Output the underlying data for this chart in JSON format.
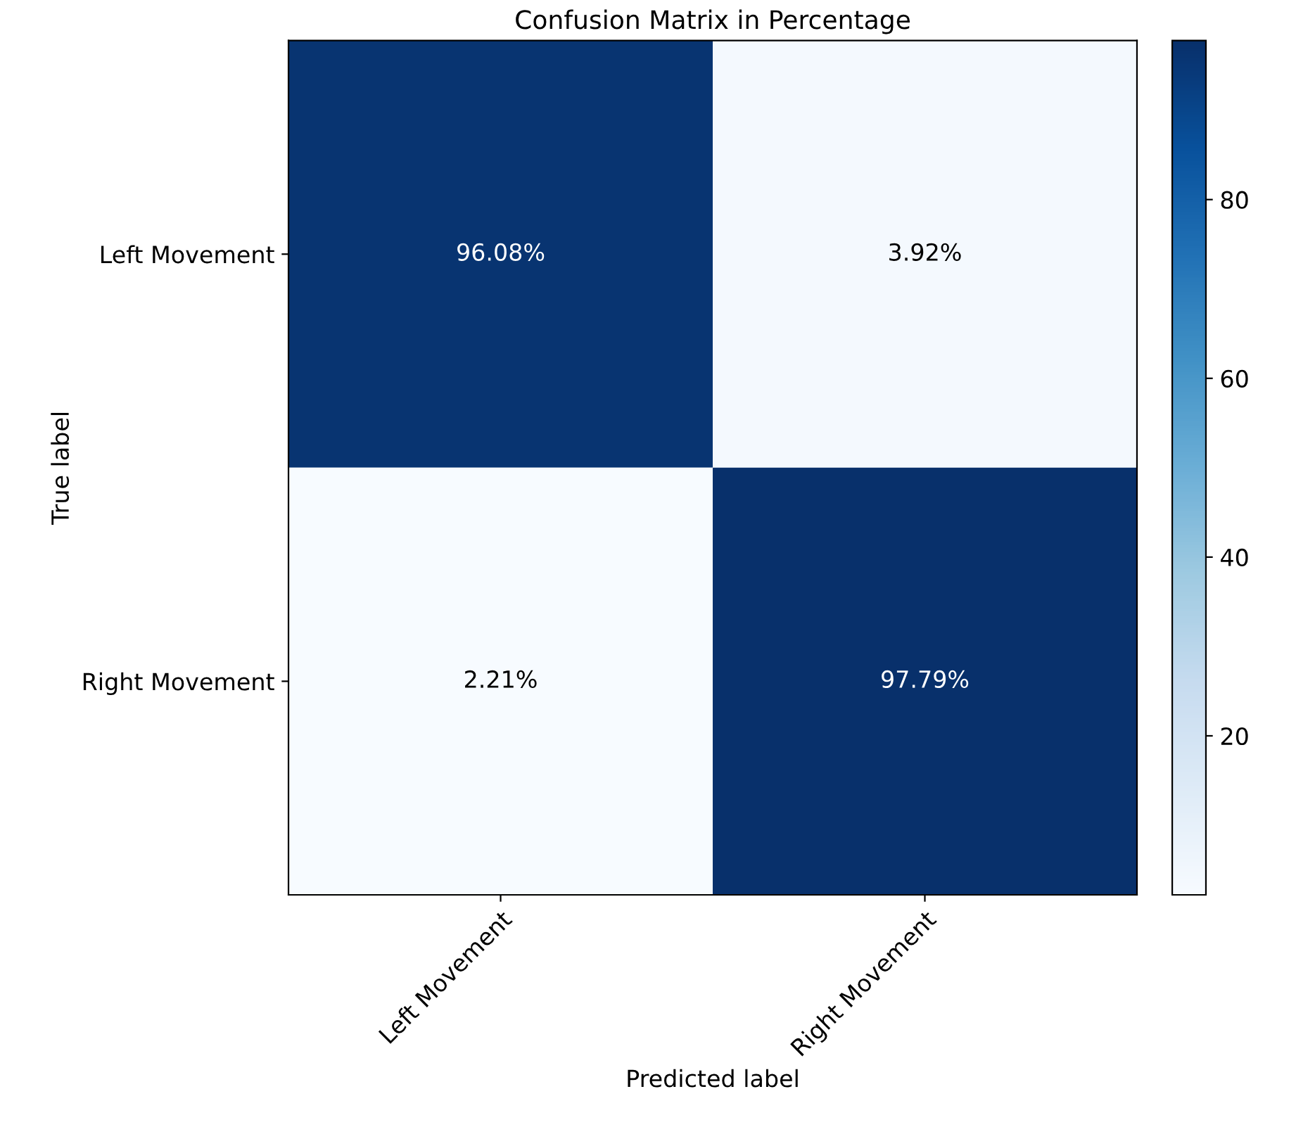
{
  "chart_data": {
    "type": "heatmap",
    "title": "Confusion Matrix in Percentage",
    "xlabel": "Predicted label",
    "ylabel": "True label",
    "categories": [
      "Left Movement",
      "Right Movement"
    ],
    "y_categories": [
      "Left Movement",
      "Right Movement"
    ],
    "cells": [
      [
        96.08,
        3.92
      ],
      [
        2.21,
        97.79
      ]
    ],
    "cell_labels": [
      [
        "96.08%",
        "3.92%"
      ],
      [
        "2.21%",
        "97.79%"
      ]
    ],
    "clim": [
      2.21,
      97.79
    ],
    "cticks": [
      20,
      40,
      60,
      80
    ],
    "grid": false
  }
}
